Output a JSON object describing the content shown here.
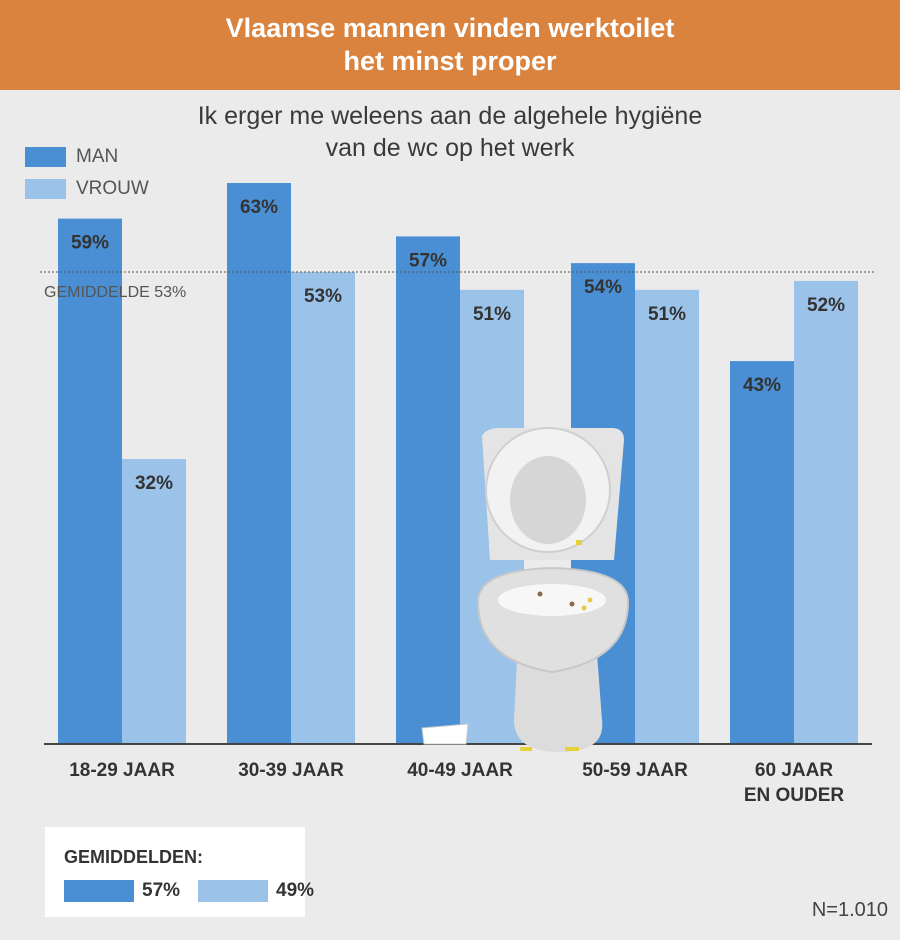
{
  "header": {
    "title_line1": "Vlaamse mannen vinden werktoilet",
    "title_line2": "het minst proper"
  },
  "subtitle": {
    "line1": "Ik erger me weleens aan de algehele hygiëne",
    "line2": "van de wc op het werk"
  },
  "colors": {
    "man": "#4a8fd3",
    "vrouw": "#9bc2e8",
    "header": "#d9833f"
  },
  "chart_data": {
    "type": "bar",
    "categories": [
      [
        "18-29 JAAR"
      ],
      [
        "30-39 JAAR"
      ],
      [
        "40-49 JAAR"
      ],
      [
        "50-59 JAAR"
      ],
      [
        "60 JAAR",
        "EN OUDER"
      ]
    ],
    "series": [
      {
        "name": "MAN",
        "values": [
          59,
          63,
          57,
          54,
          43
        ],
        "labels": [
          "59%",
          "63%",
          "57%",
          "54%",
          "43%"
        ],
        "color": "#4a8fd3"
      },
      {
        "name": "VROUW",
        "values": [
          32,
          53,
          51,
          51,
          52
        ],
        "labels": [
          "32%",
          "53%",
          "51%",
          "51%",
          "52%"
        ],
        "color": "#9bc2e8"
      }
    ],
    "reference_line": {
      "value": 53,
      "label": "GEMIDDELDE 53%"
    },
    "ylim": [
      0,
      63
    ]
  },
  "averages": {
    "title": "GEMIDDELDEN:",
    "man": "57%",
    "vrouw": "49%"
  },
  "note": "N=1.010",
  "illustration": "toilet-illustration"
}
